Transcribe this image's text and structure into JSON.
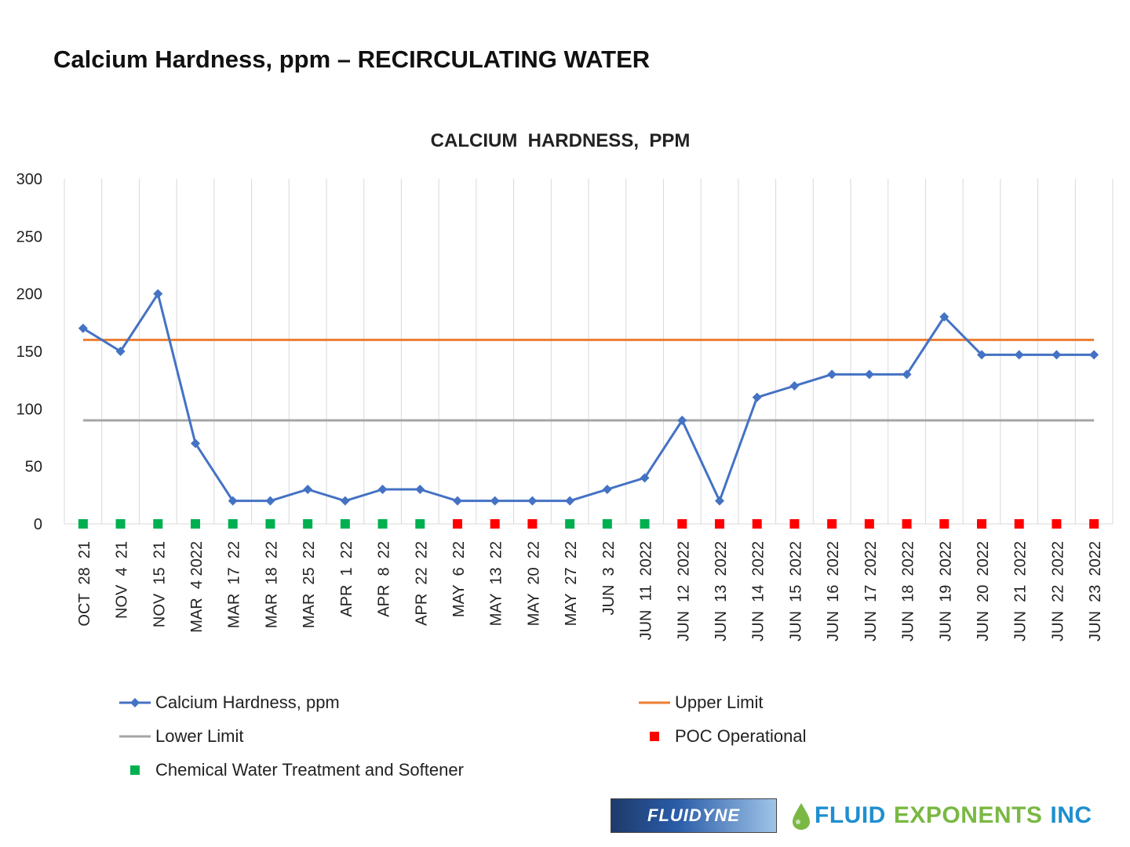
{
  "slide": {
    "title": "Calcium Hardness, ppm – RECIRCULATING WATER"
  },
  "chart_data": {
    "type": "line",
    "title": "CALCIUM  HARDNESS,  PPM",
    "categories": [
      "OCT  28  21",
      "NOV  4  21",
      "NOV  15  21",
      "MAR  4 2022",
      "MAR  17  22",
      "MAR  18  22",
      "MAR  25  22",
      "APR  1  22",
      "APR  8  22",
      "APR  22  22",
      "MAY  6  22",
      "MAY  13  22",
      "MAY  20  22",
      "MAY  27  22",
      "JUN  3  22",
      "JUN  11  2022",
      "JUN  12  2022",
      "JUN  13  2022",
      "JUN  14  2022",
      "JUN  15  2022",
      "JUN  16  2022",
      "JUN  17  2022",
      "JUN  18  2022",
      "JUN  19  2022",
      "JUN  20  2022",
      "JUN  21  2022",
      "JUN  22  2022",
      "JUN  23  2022"
    ],
    "series": [
      {
        "name": "Calcium Hardness, ppm",
        "color": "#4472c4",
        "marker": "diamond",
        "values": [
          170,
          150,
          200,
          70,
          20,
          20,
          30,
          20,
          30,
          30,
          20,
          20,
          20,
          20,
          30,
          40,
          90,
          20,
          110,
          120,
          130,
          130,
          130,
          180,
          147,
          147,
          147,
          147
        ]
      },
      {
        "name": "Upper Limit",
        "color": "#ed7d31",
        "values": [
          160,
          160,
          160,
          160,
          160,
          160,
          160,
          160,
          160,
          160,
          160,
          160,
          160,
          160,
          160,
          160,
          160,
          160,
          160,
          160,
          160,
          160,
          160,
          160,
          160,
          160,
          160,
          160
        ]
      },
      {
        "name": "Lower Limit",
        "color": "#a5a5a5",
        "values": [
          90,
          90,
          90,
          90,
          90,
          90,
          90,
          90,
          90,
          90,
          90,
          90,
          90,
          90,
          90,
          90,
          90,
          90,
          90,
          90,
          90,
          90,
          90,
          90,
          90,
          90,
          90,
          90
        ]
      }
    ],
    "status_markers": {
      "legend_chemical": "Chemical Water Treatment and Softener",
      "legend_poc": "POC Operational",
      "chemical_color": "#00b050",
      "poc_color": "#ff0000",
      "status": [
        "chemical",
        "chemical",
        "chemical",
        "chemical",
        "chemical",
        "chemical",
        "chemical",
        "chemical",
        "chemical",
        "chemical",
        "poc",
        "poc",
        "poc",
        "chemical",
        "chemical",
        "chemical",
        "poc",
        "poc",
        "poc",
        "poc",
        "poc",
        "poc",
        "poc",
        "poc",
        "poc",
        "poc",
        "poc",
        "poc"
      ]
    },
    "ylim": [
      0,
      300
    ],
    "yticks": [
      0,
      50,
      100,
      150,
      200,
      250,
      300
    ],
    "grid": "vertical",
    "legend": "bottom"
  },
  "logos": {
    "fluidyne": "FLUIDYNE",
    "fluid_exponents_1": "FLUID",
    "fluid_exponents_2": "EXPONENTS",
    "fluid_exponents_3": "INC"
  }
}
